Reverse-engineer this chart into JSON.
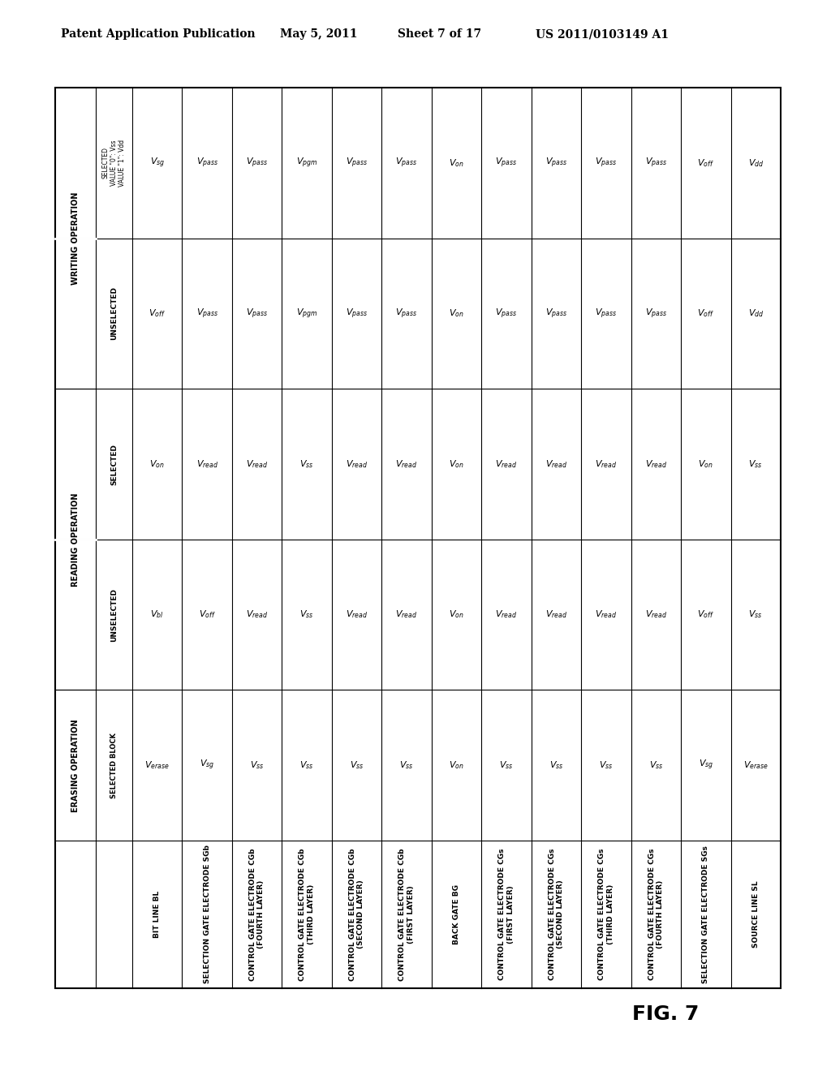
{
  "header_line1": "Patent Application Publication",
  "header_date": "May 5, 2011",
  "header_sheet": "Sheet 7 of 17",
  "header_patent": "US 2011/0103149 A1",
  "fig_label": "FIG. 7",
  "row_labels": [
    "BIT LINE BL",
    "SELECTION GATE ELECTRODE SGb",
    "CONTROL GATE ELECTRODE CGb\n(FOURTH LAYER)",
    "CONTROL GATE ELECTRODE CGb\n(THIRD LAYER)",
    "CONTROL GATE ELECTRODE CGb\n(SECOND LAYER)",
    "CONTROL GATE ELECTRODE CGb\n(FIRST LAYER)",
    "BACK GATE BG",
    "CONTROL GATE ELECTRODE CGs\n(FIRST LAYER)",
    "CONTROL GATE ELECTRODE CGs\n(SECOND LAYER)",
    "CONTROL GATE ELECTRODE CGs\n(THIRD LAYER)",
    "CONTROL GATE ELECTRODE CGs\n(FOURTH LAYER)",
    "SELECTION GATE ELECTRODE SGs",
    "SOURCE LINE SL"
  ],
  "write_selected": [
    "$V_{sg}$",
    "$V_{pass}$",
    "$V_{pass}$",
    "$V_{pgm}$",
    "$V_{pass}$",
    "$V_{pass}$",
    "$V_{on}$",
    "$V_{pass}$",
    "$V_{pass}$",
    "$V_{pass}$",
    "$V_{pass}$",
    "$V_{off}$",
    "$V_{dd}$"
  ],
  "write_unselected": [
    "$V_{off}$",
    "$V_{pass}$",
    "$V_{pass}$",
    "$V_{pgm}$",
    "$V_{pass}$",
    "$V_{pass}$",
    "$V_{on}$",
    "$V_{pass}$",
    "$V_{pass}$",
    "$V_{pass}$",
    "$V_{pass}$",
    "$V_{off}$",
    "$V_{dd}$"
  ],
  "read_selected": [
    "$V_{on}$",
    "$V_{read}$",
    "$V_{read}$",
    "$V_{ss}$",
    "$V_{read}$",
    "$V_{read}$",
    "$V_{on}$",
    "$V_{read}$",
    "$V_{read}$",
    "$V_{read}$",
    "$V_{read}$",
    "$V_{on}$",
    "$V_{ss}$"
  ],
  "read_unselected": [
    "$V_{bl}$",
    "$V_{off}$",
    "$V_{read}$",
    "$V_{ss}$",
    "$V_{read}$",
    "$V_{read}$",
    "$V_{on}$",
    "$V_{read}$",
    "$V_{read}$",
    "$V_{read}$",
    "$V_{read}$",
    "$V_{off}$",
    "$V_{ss}$"
  ],
  "erase": [
    "$V_{erase}$",
    "$V_{sg}$",
    "$V_{ss}$",
    "$V_{ss}$",
    "$V_{ss}$",
    "$V_{ss}$",
    "$V_{on}$",
    "$V_{ss}$",
    "$V_{ss}$",
    "$V_{ss}$",
    "$V_{ss}$",
    "$V_{sg}$",
    "$V_{erase}$"
  ],
  "write_unsel_note": "VALUE \"0\": Vss\nVALUE \"1\": Vdd"
}
